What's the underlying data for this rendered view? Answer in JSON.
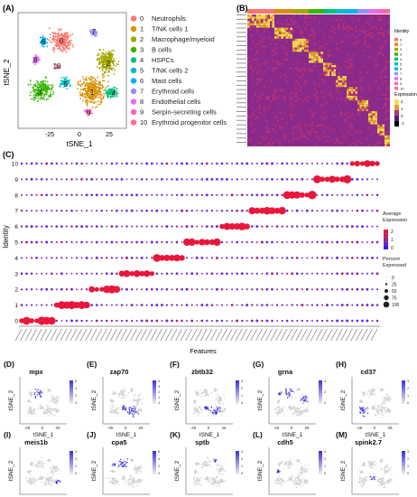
{
  "panels": {
    "A": "(A)",
    "B": "(B)",
    "C": "(C)",
    "D": "(D)",
    "E": "(E)",
    "F": "(F)",
    "G": "(G)",
    "H": "(H)",
    "I": "(I)",
    "J": "(J)",
    "K": "(K)",
    "L": "(L)",
    "M": "(M)"
  },
  "tsne": {
    "xlabel": "tSNE_1",
    "ylabel": "tSNE_2",
    "xticks": [
      "-25",
      "0",
      "25"
    ],
    "cluster_labels_on_plot": [
      "0",
      "1",
      "2",
      "3",
      "4",
      "5",
      "6",
      "7",
      "8",
      "9",
      "10"
    ]
  },
  "legend_a": [
    {
      "id": "0",
      "name": "Neutrophils",
      "color": "#f8766d"
    },
    {
      "id": "1",
      "name": "T/NK cells 1",
      "color": "#d89000"
    },
    {
      "id": "2",
      "name": "Macrophage/myeloid",
      "color": "#a3a500"
    },
    {
      "id": "3",
      "name": "B cells",
      "color": "#39b600"
    },
    {
      "id": "4",
      "name": "HSPCs",
      "color": "#00bf7d"
    },
    {
      "id": "5",
      "name": "T/NK cells 2",
      "color": "#00bfc4"
    },
    {
      "id": "6",
      "name": "Mast cells",
      "color": "#00b0f6"
    },
    {
      "id": "7",
      "name": "Erythroid cells",
      "color": "#9590ff"
    },
    {
      "id": "8",
      "name": "Endothelial cells",
      "color": "#e76bf3"
    },
    {
      "id": "9",
      "name": "Serpin-secreting cells",
      "color": "#ff62bc"
    },
    {
      "id": "10",
      "name": "Erythroid progenitor cells",
      "color": "#ff6c91"
    }
  ],
  "heatmap": {
    "identity_title": "Identity",
    "expression_title": "Expression",
    "expression_ticks": [
      "2",
      "1",
      "0",
      "-1"
    ],
    "identity_levels": [
      "0",
      "1",
      "2",
      "3",
      "4",
      "5",
      "6",
      "7",
      "8",
      "9",
      "10"
    ]
  },
  "dotplot": {
    "ylabel": "Identity",
    "xlabel": "Features",
    "identities": [
      "10",
      "9",
      "8",
      "7",
      "6",
      "5",
      "4",
      "3",
      "2",
      "1",
      "0"
    ],
    "avg_expr_title": "Average\nExpression",
    "avg_expr_ticks": [
      "2",
      "1",
      "0"
    ],
    "pct_title": "Percent\nExpressed",
    "pct_levels": [
      "0",
      "25",
      "50",
      "75",
      "100"
    ]
  },
  "feature_plots": [
    {
      "panel": "D",
      "gene": "mpx",
      "scale": [
        "6",
        "4",
        "2",
        "0"
      ]
    },
    {
      "panel": "E",
      "gene": "zap70",
      "scale": [
        "4",
        "3",
        "2",
        "1",
        "0"
      ]
    },
    {
      "panel": "F",
      "gene": "zbtb32",
      "scale": [
        "3",
        "2",
        "1",
        "0"
      ]
    },
    {
      "panel": "G",
      "gene": "grna",
      "scale": [
        "4",
        "2",
        "0"
      ]
    },
    {
      "panel": "H",
      "gene": "cd37",
      "scale": [
        "3",
        "2",
        "1",
        "0"
      ]
    },
    {
      "panel": "I",
      "gene": "meis1b",
      "scale": [
        "3",
        "2",
        "1",
        "0"
      ]
    },
    {
      "panel": "J",
      "gene": "cpa5",
      "scale": [
        "6",
        "4",
        "2",
        "0"
      ]
    },
    {
      "panel": "K",
      "gene": "sptb",
      "scale": [
        "3",
        "2",
        "1",
        "0"
      ]
    },
    {
      "panel": "L",
      "gene": "cdh5",
      "scale": [
        "3",
        "2",
        "1",
        "0"
      ]
    },
    {
      "panel": "M",
      "gene": "spink2.7",
      "scale": [
        "3",
        "2",
        "1",
        "0"
      ]
    }
  ],
  "colors": {
    "expr_high": "#e8173b",
    "expr_mid": "#a01d8c",
    "expr_low": "#2d1cf0",
    "feature_high": "#3a2ee0",
    "feature_low": "#d0d0d0"
  }
}
